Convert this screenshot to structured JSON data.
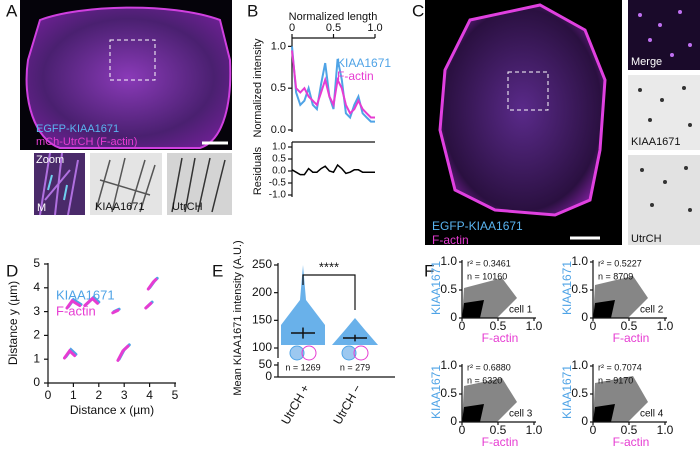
{
  "panel_a": {
    "label": "A",
    "legend": [
      "EGFP-KIAA1671",
      "mCh-UtrCH (F-actin)"
    ],
    "zoom_label": "Zoom",
    "merge_label": "M",
    "channel_labels": [
      "KIAA1671",
      "UtrCH"
    ]
  },
  "panel_b": {
    "label": "B",
    "chart": {
      "type": "line",
      "xlabel": "Normalized length",
      "ylabel": "Normalized intensity",
      "x": [
        0,
        0.05,
        0.1,
        0.15,
        0.2,
        0.25,
        0.3,
        0.35,
        0.4,
        0.45,
        0.5,
        0.55,
        0.6,
        0.65,
        0.7,
        0.75,
        0.8,
        0.85,
        0.9,
        0.95,
        1.0
      ],
      "xlim": [
        0,
        1
      ],
      "xticks": [
        0,
        0.5,
        {
          "value": 1,
          "label": "1.0"
        }
      ],
      "ylim": [
        0,
        1.1
      ],
      "yticks": [
        {
          "value": 0,
          "label": "0.0"
        },
        0.5,
        {
          "value": 1,
          "label": "1.0"
        }
      ],
      "series": [
        {
          "name": "KIAA1671",
          "color": "#4fa3e6",
          "values": [
            1.0,
            0.45,
            0.3,
            0.35,
            0.5,
            0.3,
            0.25,
            0.55,
            0.8,
            0.4,
            0.25,
            0.85,
            0.6,
            0.2,
            0.15,
            0.3,
            0.4,
            0.2,
            0.15,
            0.1,
            0.1
          ]
        },
        {
          "name": "F-actin",
          "color": "#e63cd2",
          "values": [
            0.95,
            0.5,
            0.45,
            0.5,
            0.4,
            0.35,
            0.3,
            0.45,
            0.6,
            0.4,
            0.3,
            0.6,
            0.5,
            0.3,
            0.2,
            0.25,
            0.35,
            0.25,
            0.2,
            0.15,
            0.15
          ]
        }
      ]
    },
    "residuals": {
      "type": "line",
      "ylabel": "Residuals",
      "color": "#000000",
      "ylim": [
        -1,
        1
      ],
      "yticks": [
        {
          "value": 1,
          "label": "1.0"
        },
        0.5,
        {
          "value": 0,
          "label": "0.0"
        },
        -0.5,
        {
          "value": -1,
          "label": "-1.0"
        }
      ],
      "values": [
        0.05,
        -0.05,
        -0.15,
        -0.15,
        0.1,
        -0.05,
        -0.05,
        0.1,
        0.2,
        0,
        -0.05,
        0.25,
        0.1,
        -0.1,
        -0.05,
        0.05,
        0.05,
        -0.05,
        -0.05,
        -0.05,
        -0.05
      ]
    }
  },
  "panel_c": {
    "label": "C",
    "legend": [
      "EGFP-KIAA1671",
      "F-actin"
    ],
    "inset_labels": [
      "Merge",
      "KIAA1671",
      "UtrCH"
    ]
  },
  "panel_d": {
    "label": "D",
    "chart": {
      "type": "trajectory",
      "xlabel": "Distance x (µm)",
      "ylabel": "Distance y (µm)",
      "xlim": [
        0,
        5
      ],
      "xticks": [
        0,
        1,
        2,
        3,
        4,
        5
      ],
      "ylim": [
        0,
        5
      ],
      "yticks": [
        0,
        1,
        2,
        3,
        4,
        5
      ],
      "series": [
        {
          "name": "KIAA1671",
          "color": "#4fa3e6",
          "x": [
            0.8,
            1.0,
            1.3,
            null,
            1.5,
            1.8,
            2.0,
            null,
            2.6,
            2.8,
            null,
            4.0,
            4.2,
            4.3,
            null,
            3.9,
            4.1,
            null,
            2.8,
            3.0,
            3.2,
            null,
            0.7,
            0.9,
            1.1
          ],
          "y": [
            3.2,
            3.5,
            3.3,
            null,
            3.3,
            3.6,
            3.4,
            null,
            3.0,
            3.1,
            null,
            4.0,
            4.3,
            4.4,
            null,
            3.2,
            3.4,
            null,
            1.0,
            1.4,
            1.6,
            null,
            1.1,
            1.4,
            1.2
          ]
        },
        {
          "name": "F-actin",
          "color": "#e63cd2",
          "x": [
            0.75,
            0.95,
            1.25,
            null,
            1.45,
            1.75,
            1.95,
            null,
            2.55,
            2.75,
            null,
            3.95,
            4.15,
            4.25,
            null,
            3.85,
            4.05,
            null,
            2.75,
            2.95,
            3.15,
            null,
            0.65,
            0.85,
            1.05
          ],
          "y": [
            3.15,
            3.45,
            3.25,
            null,
            3.25,
            3.55,
            3.35,
            null,
            2.95,
            3.05,
            null,
            3.95,
            4.25,
            4.35,
            null,
            3.15,
            3.35,
            null,
            0.95,
            1.35,
            1.55,
            null,
            1.05,
            1.35,
            1.15
          ]
        }
      ]
    }
  },
  "panel_e": {
    "label": "E",
    "chart": {
      "type": "swarm",
      "ylabel": "Mean KIAA1671 intensity (A.U.)",
      "categories": [
        "UtrCH +",
        "UtrCH −"
      ],
      "ylim": [
        0,
        250
      ],
      "yticks": [
        0,
        50,
        100,
        150,
        200,
        250
      ],
      "axis_break": [
        50,
        100
      ],
      "values": [
        127,
        118
      ],
      "errors": [
        10,
        6
      ],
      "n_labels": [
        "n = 1269",
        "n = 279"
      ],
      "significance": "****"
    }
  },
  "panel_f": {
    "label": "F",
    "xlabel": "F-actin",
    "ylabel": "KIAA1671",
    "xlim": [
      0,
      1
    ],
    "xticks": [
      0,
      0.5,
      {
        "value": 1,
        "label": "1.0"
      }
    ],
    "ylim": [
      0,
      1
    ],
    "yticks": [
      0,
      0.5,
      {
        "value": 1,
        "label": "1.0"
      }
    ],
    "plots": [
      {
        "r2": "r² = 0.3461",
        "n": "n = 10160",
        "cell": "cell 1"
      },
      {
        "r2": "r² = 0.5227",
        "n": "n = 8709",
        "cell": "cell 2"
      },
      {
        "r2": "r² = 0.6880",
        "n": "n = 6320",
        "cell": "cell 3"
      },
      {
        "r2": "r² = 0.7074",
        "n": "n = 9170",
        "cell": "cell 4"
      }
    ]
  }
}
